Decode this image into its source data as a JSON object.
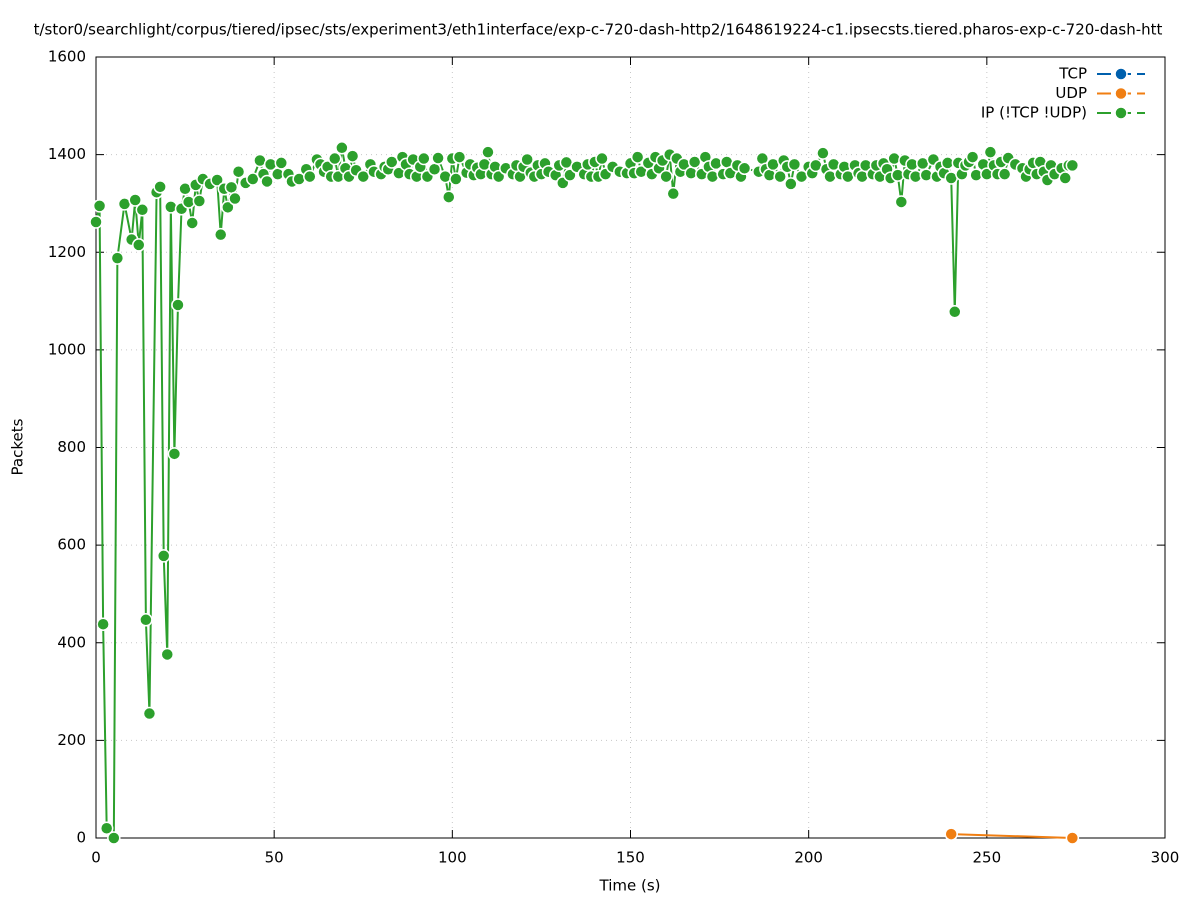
{
  "chart_data": {
    "type": "line",
    "title": "t/stor0/searchlight/corpus/tiered/ipsec/sts/experiment3/eth1interface/exp-c-720-dash-http2/1648619224-c1.ipsecsts.tiered.pharos-exp-c-720-dash-htt",
    "x_label": "Time (s)",
    "y_label": "Packets",
    "xlim": [
      0,
      300
    ],
    "xticks": [
      0,
      50,
      100,
      150,
      200,
      250,
      300
    ],
    "ylim": [
      0,
      1600
    ],
    "yticks": [
      0,
      200,
      400,
      600,
      800,
      1000,
      1200,
      1400,
      1600
    ],
    "grid": true,
    "legend": "top-right",
    "series": [
      {
        "name": "TCP",
        "color": "#0060ad",
        "x": [],
        "values": []
      },
      {
        "name": "UDP",
        "color": "#f07e12",
        "x": [
          240,
          274
        ],
        "values": [
          8,
          0
        ]
      },
      {
        "name": "IP (!TCP  !UDP)",
        "color": "#2ca02c",
        "x": [
          0,
          1,
          2,
          3,
          5,
          6,
          8,
          10,
          11,
          12,
          13,
          14,
          15,
          17,
          18,
          19,
          20,
          21,
          22,
          23,
          24,
          25,
          26,
          27,
          28,
          29,
          30,
          32,
          34,
          35,
          36,
          37,
          38,
          39,
          40,
          42,
          44,
          46,
          47,
          48,
          49,
          51,
          52,
          54,
          55,
          57,
          59,
          60,
          62,
          63,
          64,
          65,
          66,
          67,
          68,
          69,
          70,
          71,
          72,
          73,
          75,
          77,
          78,
          80,
          81,
          82,
          83,
          85,
          86,
          87,
          88,
          89,
          90,
          91,
          92,
          93,
          95,
          96,
          98,
          99,
          100,
          101,
          102,
          104,
          105,
          106,
          107,
          108,
          109,
          110,
          111,
          112,
          113,
          115,
          117,
          118,
          119,
          120,
          121,
          122,
          123,
          124,
          125,
          126,
          127,
          129,
          130,
          131,
          132,
          133,
          135,
          137,
          138,
          139,
          140,
          141,
          142,
          143,
          145,
          147,
          149,
          150,
          151,
          152,
          153,
          155,
          156,
          157,
          158,
          159,
          160,
          161,
          162,
          163,
          164,
          165,
          167,
          168,
          170,
          171,
          172,
          173,
          174,
          176,
          177,
          178,
          180,
          181,
          182,
          186,
          187,
          188,
          189,
          190,
          192,
          193,
          194,
          195,
          196,
          198,
          200,
          201,
          202,
          204,
          205,
          206,
          207,
          209,
          210,
          211,
          213,
          214,
          215,
          216,
          218,
          219,
          220,
          221,
          222,
          223,
          224,
          225,
          226,
          227,
          228,
          229,
          230,
          232,
          233,
          235,
          236,
          237,
          238,
          239,
          240,
          241,
          242,
          243,
          244,
          245,
          246,
          247,
          249,
          250,
          251,
          252,
          253,
          254,
          255,
          256,
          258,
          260,
          261,
          262,
          263,
          264,
          265,
          266,
          267,
          268,
          269,
          271,
          272,
          273,
          274
        ],
        "values": [
          1262,
          1295,
          438,
          20,
          0,
          1188,
          1299,
          1226,
          1307,
          1215,
          1287,
          447,
          255,
          1323,
          1334,
          578,
          376,
          1293,
          787,
          1092,
          1289,
          1330,
          1303,
          1260,
          1338,
          1305,
          1350,
          1340,
          1348,
          1236,
          1330,
          1292,
          1333,
          1310,
          1365,
          1342,
          1350,
          1388,
          1360,
          1345,
          1380,
          1360,
          1383,
          1360,
          1345,
          1350,
          1370,
          1355,
          1390,
          1380,
          1365,
          1375,
          1355,
          1392,
          1355,
          1414,
          1372,
          1355,
          1397,
          1368,
          1355,
          1380,
          1365,
          1360,
          1375,
          1370,
          1385,
          1362,
          1395,
          1380,
          1360,
          1390,
          1355,
          1375,
          1392,
          1355,
          1370,
          1393,
          1355,
          1313,
          1392,
          1350,
          1395,
          1363,
          1380,
          1358,
          1373,
          1360,
          1380,
          1405,
          1360,
          1375,
          1355,
          1372,
          1360,
          1378,
          1355,
          1375,
          1390,
          1363,
          1355,
          1378,
          1360,
          1382,
          1365,
          1358,
          1378,
          1342,
          1384,
          1358,
          1375,
          1360,
          1380,
          1355,
          1385,
          1355,
          1392,
          1360,
          1375,
          1365,
          1362,
          1382,
          1362,
          1395,
          1365,
          1383,
          1360,
          1395,
          1372,
          1388,
          1355,
          1400,
          1320,
          1392,
          1365,
          1380,
          1362,
          1385,
          1360,
          1395,
          1375,
          1355,
          1382,
          1360,
          1385,
          1362,
          1378,
          1355,
          1372,
          1365,
          1392,
          1370,
          1358,
          1380,
          1355,
          1388,
          1375,
          1340,
          1380,
          1355,
          1375,
          1362,
          1378,
          1403,
          1370,
          1355,
          1380,
          1360,
          1375,
          1355,
          1378,
          1362,
          1355,
          1378,
          1360,
          1378,
          1355,
          1382,
          1370,
          1352,
          1392,
          1358,
          1303,
          1388,
          1360,
          1380,
          1355,
          1382,
          1358,
          1390,
          1355,
          1375,
          1362,
          1383,
          1352,
          1078,
          1383,
          1360,
          1378,
          1385,
          1395,
          1358,
          1380,
          1360,
          1405,
          1378,
          1360,
          1385,
          1360,
          1393,
          1380,
          1372,
          1355,
          1370,
          1383,
          1360,
          1385,
          1365,
          1348,
          1378,
          1360,
          1372,
          1352,
          1378,
          1378
        ]
      }
    ]
  }
}
